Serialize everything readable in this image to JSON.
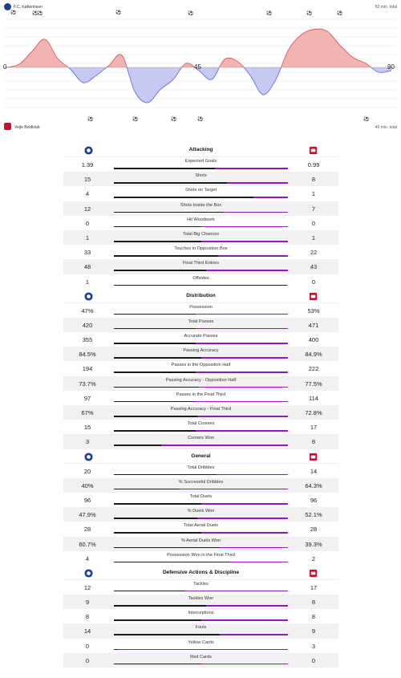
{
  "momentum": {
    "home_team": "F.C. København",
    "away_team": "Vejle Boldklub",
    "home_total": "50 min. total",
    "away_total": "40 min. total",
    "axis_start": "0",
    "axis_half": "45",
    "axis_end": "90",
    "colors": {
      "home_fill": "#f2b3b3",
      "home_line": "#e05a5a",
      "away_fill": "#c7c9f2",
      "away_line": "#6a6fd8"
    },
    "chart_data": {
      "type": "area",
      "x": [
        0,
        3,
        6,
        9,
        12,
        15,
        18,
        21,
        24,
        27,
        30,
        33,
        36,
        39,
        42,
        45,
        48,
        51,
        54,
        57,
        60,
        63,
        66,
        69,
        72,
        75,
        78,
        81,
        84,
        87,
        90
      ],
      "y": [
        0,
        8,
        40,
        70,
        22,
        -5,
        -38,
        -20,
        5,
        30,
        -60,
        -88,
        -55,
        -30,
        10,
        -8,
        -30,
        20,
        15,
        -20,
        -68,
        -30,
        45,
        82,
        95,
        90,
        55,
        25,
        10,
        -12,
        -8
      ]
    }
  },
  "icons": {
    "home_logo": "fck-crest-icon",
    "away_logo": "vejle-crest-icon"
  },
  "sections": [
    {
      "title": "Attacking",
      "rows": [
        {
          "label": "Expected Goals",
          "home": "1.39",
          "away": "0.99",
          "home_share": 0.58
        },
        {
          "label": "Shots",
          "home": "15",
          "away": "8",
          "home_share": 0.65
        },
        {
          "label": "Shots on Target",
          "home": "4",
          "away": "1",
          "home_share": 0.8
        },
        {
          "label": "Shots Inside the Box",
          "home": "12",
          "away": "7",
          "home_share": 0.63
        },
        {
          "label": "Hit Woodwork",
          "home": "0",
          "away": "0",
          "home_share": 0.5
        },
        {
          "label": "Total Big Chances",
          "home": "1",
          "away": "1",
          "home_share": 0.5
        },
        {
          "label": "Touches in Opposition Box",
          "home": "33",
          "away": "22",
          "home_share": 0.6
        },
        {
          "label": "Final Third Entries",
          "home": "48",
          "away": "43",
          "home_share": 0.53
        },
        {
          "label": "Offsides",
          "home": "1",
          "away": "0",
          "home_share": 0.99
        }
      ]
    },
    {
      "title": "Distribution",
      "rows": [
        {
          "label": "Possession",
          "home": "47%",
          "away": "53%",
          "home_share": 0.47
        },
        {
          "label": "Total Passes",
          "home": "420",
          "away": "471",
          "home_share": 0.47
        },
        {
          "label": "Accurate Passes",
          "home": "355",
          "away": "400",
          "home_share": 0.47
        },
        {
          "label": "Passing Accuracy",
          "home": "84.5%",
          "away": "84.9%",
          "home_share": 0.5
        },
        {
          "label": "Passes in the Opposition Half",
          "home": "194",
          "away": "222",
          "home_share": 0.47
        },
        {
          "label": "Passing Accuracy - Opposition Half",
          "home": "73.7%",
          "away": "77.5%",
          "home_share": 0.49
        },
        {
          "label": "Passes in the Final Third",
          "home": "97",
          "away": "114",
          "home_share": 0.46
        },
        {
          "label": "Passing Accuracy - Final Third",
          "home": "67%",
          "away": "72.8%",
          "home_share": 0.48
        },
        {
          "label": "Total Crosses",
          "home": "15",
          "away": "17",
          "home_share": 0.47
        },
        {
          "label": "Corners Won",
          "home": "3",
          "away": "8",
          "home_share": 0.27
        }
      ]
    },
    {
      "title": "General",
      "rows": [
        {
          "label": "Total Dribbles",
          "home": "20",
          "away": "14",
          "home_share": 0.59
        },
        {
          "label": "% Successful Dribbles",
          "home": "40%",
          "away": "64.3%",
          "home_share": 0.38
        },
        {
          "label": "Total Duels",
          "home": "96",
          "away": "96",
          "home_share": 0.5
        },
        {
          "label": "% Duels Won",
          "home": "47.9%",
          "away": "52.1%",
          "home_share": 0.48
        },
        {
          "label": "Total Aerial Duels",
          "home": "28",
          "away": "28",
          "home_share": 0.5
        },
        {
          "label": "% Aerial Duels Won",
          "home": "60.7%",
          "away": "39.3%",
          "home_share": 0.61
        },
        {
          "label": "Possession Won in the Final Third",
          "home": "4",
          "away": "2",
          "home_share": 0.67
        }
      ]
    },
    {
      "title": "Defensive Actions & Discipline",
      "rows": [
        {
          "label": "Tackles",
          "home": "12",
          "away": "17",
          "home_share": 0.41
        },
        {
          "label": "Tackles Won",
          "home": "9",
          "away": "8",
          "home_share": 0.53
        },
        {
          "label": "Interceptions",
          "home": "8",
          "away": "8",
          "home_share": 0.5
        },
        {
          "label": "Fouls",
          "home": "14",
          "away": "9",
          "home_share": 0.61
        },
        {
          "label": "Yellow Cards",
          "home": "0",
          "away": "3",
          "home_share": 0.02
        },
        {
          "label": "Red Cards",
          "home": "0",
          "away": "0",
          "home_share": 0.5
        }
      ]
    }
  ]
}
